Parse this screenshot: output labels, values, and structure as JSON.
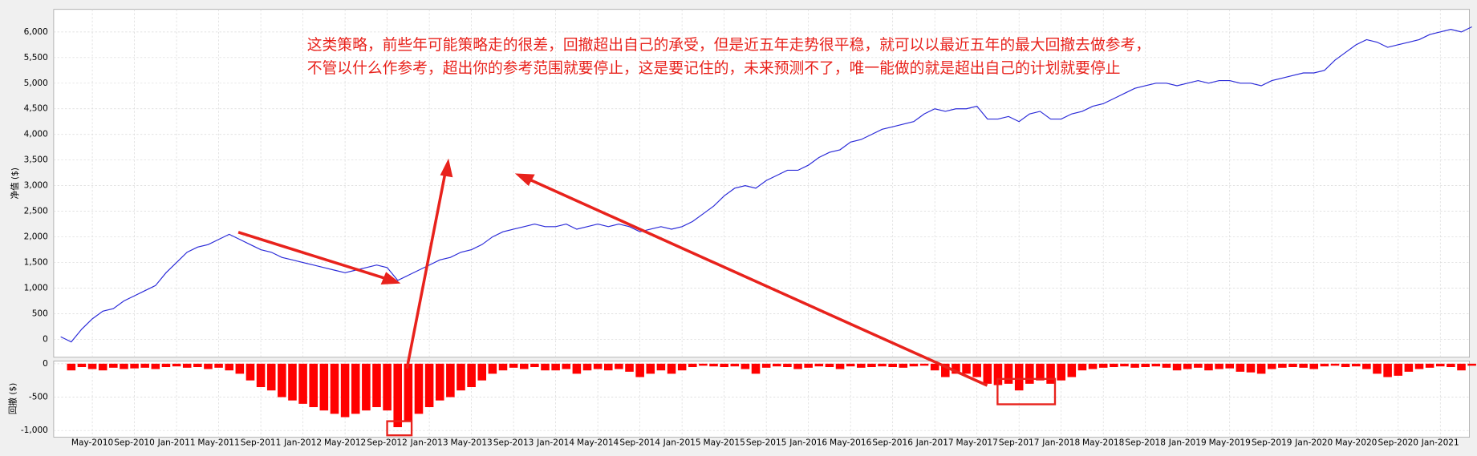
{
  "chart_data": [
    {
      "type": "line",
      "y_label": "净值 ($)",
      "color": "#2a2ad8",
      "ylim": [
        -350,
        6440
      ],
      "yticks": [
        0,
        500,
        {
          "value": 1000,
          "label": "1,000"
        },
        {
          "value": 1500,
          "label": "1,500"
        },
        {
          "value": 2000,
          "label": "2,000"
        },
        {
          "value": 2500,
          "label": "2,500"
        },
        {
          "value": 3000,
          "label": "3,000"
        },
        {
          "value": 3500,
          "label": "3,500"
        },
        {
          "value": 4000,
          "label": "4,000"
        },
        {
          "value": 4500,
          "label": "4,500"
        },
        {
          "value": 5000,
          "label": "5,000"
        },
        {
          "value": 5500,
          "label": "5,500"
        },
        {
          "value": 6000,
          "label": "6,000"
        }
      ],
      "grid": true,
      "annotations": [
        "这类策略，前些年可能策略走的很差，回撤超出自己的承受，但是近五年走势很平稳，就可以以最近五年的最大回撤去做参考，",
        "不管以什么作参考，超出你的参考范围就要停止，这是要记住的，未来预测不了，唯一能做的就是超出自己的计划就要停止"
      ],
      "values": [
        50,
        -50,
        200,
        400,
        550,
        600,
        750,
        850,
        950,
        1050,
        1300,
        1500,
        1700,
        1800,
        1850,
        1950,
        2050,
        1950,
        1850,
        1750,
        1700,
        1600,
        1550,
        1500,
        1450,
        1400,
        1350,
        1300,
        1350,
        1400,
        1450,
        1400,
        1150,
        1250,
        1350,
        1450,
        1550,
        1600,
        1700,
        1750,
        1850,
        2000,
        2100,
        2150,
        2200,
        2250,
        2200,
        2200,
        2250,
        2150,
        2200,
        2250,
        2200,
        2250,
        2200,
        2100,
        2150,
        2200,
        2150,
        2200,
        2300,
        2450,
        2600,
        2800,
        2950,
        3000,
        2950,
        3100,
        3200,
        3300,
        3300,
        3400,
        3550,
        3650,
        3700,
        3850,
        3900,
        4000,
        4100,
        4150,
        4200,
        4250,
        4400,
        4500,
        4450,
        4500,
        4500,
        4550,
        4300,
        4300,
        4350,
        4250,
        4400,
        4450,
        4300,
        4300,
        4400,
        4450,
        4550,
        4600,
        4700,
        4800,
        4900,
        4950,
        5000,
        5000,
        4950,
        5000,
        5050,
        5000,
        5050,
        5050,
        5000,
        5000,
        4950,
        5050,
        5100,
        5150,
        5200,
        5200,
        5250,
        5450,
        5600,
        5750,
        5850,
        5800,
        5700,
        5750,
        5800,
        5850,
        5950,
        6000,
        6050,
        6000,
        6100
      ]
    },
    {
      "type": "bar",
      "y_label": "回撤 ($)",
      "color": "#ff0000",
      "ylim": [
        -1100,
        40
      ],
      "yticks": [
        0,
        -500,
        {
          "value": -1000,
          "label": "-1,000"
        }
      ],
      "grid": true,
      "categories": [
        null,
        null,
        null,
        "May-2010",
        null,
        null,
        null,
        "Sep-2010",
        null,
        null,
        null,
        "Jan-2011",
        null,
        null,
        null,
        "May-2011",
        null,
        null,
        null,
        "Sep-2011",
        null,
        null,
        null,
        "Jan-2012",
        null,
        null,
        null,
        "May-2012",
        null,
        null,
        null,
        "Sep-2012",
        null,
        null,
        null,
        "Jan-2013",
        null,
        null,
        null,
        "May-2013",
        null,
        null,
        null,
        "Sep-2013",
        null,
        null,
        null,
        "Jan-2014",
        null,
        null,
        null,
        "May-2014",
        null,
        null,
        null,
        "Sep-2014",
        null,
        null,
        null,
        "Jan-2015",
        null,
        null,
        null,
        "May-2015",
        null,
        null,
        null,
        "Sep-2015",
        null,
        null,
        null,
        "Jan-2016",
        null,
        null,
        null,
        "May-2016",
        null,
        null,
        null,
        "Sep-2016",
        null,
        null,
        null,
        "Jan-2017",
        null,
        null,
        null,
        "May-2017",
        null,
        null,
        null,
        "Sep-2017",
        null,
        null,
        null,
        "Jan-2018",
        null,
        null,
        null,
        "May-2018",
        null,
        null,
        null,
        "Sep-2018",
        null,
        null,
        null,
        "Jan-2019",
        null,
        null,
        null,
        "May-2019",
        null,
        null,
        null,
        "Sep-2019",
        null,
        null,
        null,
        "Jan-2020",
        null,
        null,
        null,
        "May-2020",
        null,
        null,
        null,
        "Sep-2020",
        null,
        null,
        null,
        "Jan-2021",
        null,
        null,
        null
      ],
      "values": [
        0,
        -100,
        -50,
        -80,
        -100,
        -60,
        -80,
        -70,
        -60,
        -80,
        -50,
        -40,
        -60,
        -50,
        -80,
        -60,
        -100,
        -150,
        -250,
        -350,
        -400,
        -500,
        -550,
        -600,
        -650,
        -700,
        -750,
        -800,
        -750,
        -700,
        -650,
        -700,
        -950,
        -850,
        -750,
        -650,
        -550,
        -500,
        -400,
        -350,
        -250,
        -150,
        -100,
        -60,
        -80,
        -50,
        -100,
        -100,
        -80,
        -150,
        -100,
        -80,
        -100,
        -80,
        -120,
        -200,
        -150,
        -100,
        -150,
        -100,
        -50,
        -30,
        -40,
        -50,
        -40,
        -80,
        -150,
        -60,
        -40,
        -50,
        -80,
        -60,
        -40,
        -50,
        -80,
        -40,
        -60,
        -50,
        -40,
        -50,
        -60,
        -40,
        -30,
        -100,
        -200,
        -150,
        -150,
        -200,
        -300,
        -320,
        -300,
        -400,
        -300,
        -250,
        -300,
        -250,
        -200,
        -100,
        -80,
        -60,
        -50,
        -40,
        -60,
        -50,
        -40,
        -60,
        -100,
        -80,
        -60,
        -100,
        -80,
        -70,
        -120,
        -130,
        -150,
        -80,
        -60,
        -50,
        -60,
        -80,
        -40,
        -30,
        -50,
        -40,
        -80,
        -150,
        -200,
        -180,
        -120,
        -80,
        -60,
        -40,
        -50,
        -100,
        -30
      ]
    }
  ]
}
